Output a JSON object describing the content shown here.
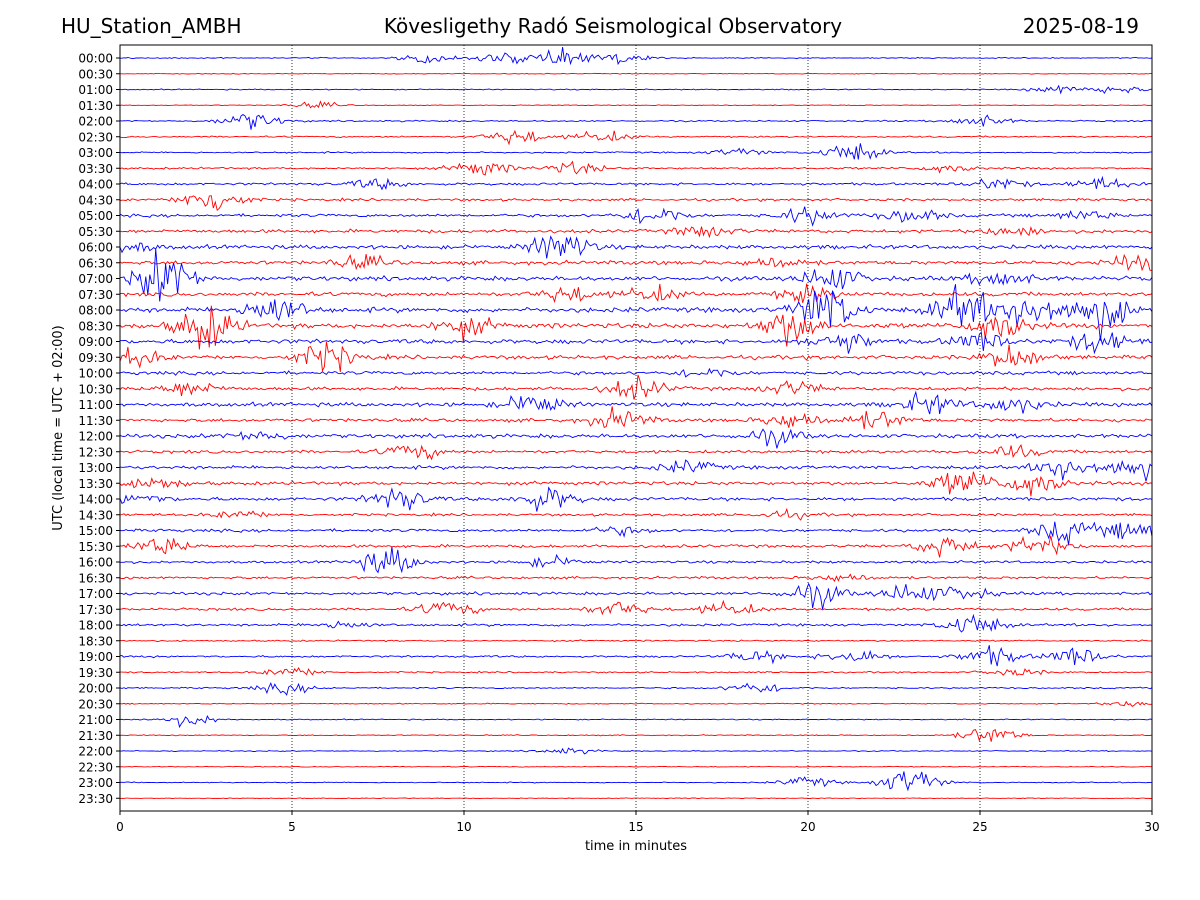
{
  "header": {
    "station": "HU_Station_AMBH",
    "observatory": "Kövesligethy Radó Seismological Observatory",
    "date": "2025-08-19"
  },
  "chart_data": {
    "type": "line",
    "subtype": "helicorder",
    "xlabel": "time in minutes",
    "ylabel": "UTC (local time = UTC + 02:00)",
    "xlim": [
      0,
      30
    ],
    "xticks": [
      0,
      5,
      10,
      15,
      20,
      25,
      30
    ],
    "grid": "vertical dotted lines at each x tick",
    "trace_colors": [
      "#0000ff",
      "#ff0000"
    ],
    "rows": [
      "00:00",
      "00:30",
      "01:00",
      "01:30",
      "02:00",
      "02:30",
      "03:00",
      "03:30",
      "04:00",
      "04:30",
      "05:00",
      "05:30",
      "06:00",
      "06:30",
      "07:00",
      "07:30",
      "08:00",
      "08:30",
      "09:00",
      "09:30",
      "10:00",
      "10:30",
      "11:00",
      "11:30",
      "12:00",
      "12:30",
      "13:00",
      "13:30",
      "14:00",
      "14:30",
      "15:00",
      "15:30",
      "16:00",
      "16:30",
      "17:00",
      "17:30",
      "18:00",
      "18:30",
      "19:00",
      "19:30",
      "20:00",
      "20:30",
      "21:00",
      "21:30",
      "22:00",
      "22:30",
      "23:00",
      "23:30"
    ],
    "noise_level": [
      0.2,
      0.15,
      0.2,
      0.15,
      0.3,
      0.3,
      0.3,
      0.4,
      0.5,
      0.5,
      0.6,
      0.7,
      0.8,
      0.8,
      0.9,
      0.8,
      1.0,
      1.0,
      0.9,
      0.8,
      0.7,
      0.7,
      0.8,
      0.7,
      0.8,
      0.6,
      0.7,
      0.7,
      0.7,
      0.5,
      0.6,
      0.6,
      0.5,
      0.5,
      0.6,
      0.5,
      0.5,
      0.3,
      0.4,
      0.3,
      0.3,
      0.2,
      0.2,
      0.2,
      0.2,
      0.15,
      0.2,
      0.15
    ],
    "bursts": [
      [
        [
          9,
          0.5
        ],
        [
          11,
          0.5
        ],
        [
          12.7,
          0.9
        ],
        [
          14.5,
          0.5
        ]
      ],
      [],
      [
        [
          27.3,
          0.4
        ],
        [
          29,
          0.4
        ]
      ],
      [
        [
          5.7,
          0.3
        ]
      ],
      [
        [
          3.8,
          0.9
        ],
        [
          25,
          0.6
        ]
      ],
      [
        [
          11.5,
          0.8
        ],
        [
          14,
          0.6
        ]
      ],
      [
        [
          21.3,
          1.0
        ],
        [
          18,
          0.4
        ]
      ],
      [
        [
          10.5,
          0.8
        ],
        [
          13.2,
          0.6
        ],
        [
          24,
          0.4
        ]
      ],
      [
        [
          7.5,
          0.5
        ],
        [
          25.5,
          0.6
        ],
        [
          28.5,
          0.6
        ]
      ],
      [
        [
          2.7,
          1.5
        ]
      ],
      [
        [
          15.5,
          1.0
        ],
        [
          20,
          0.8
        ],
        [
          23,
          0.7
        ],
        [
          28,
          0.5
        ]
      ],
      [
        [
          17,
          0.6
        ],
        [
          26,
          0.5
        ]
      ],
      [
        [
          12.8,
          1.6
        ],
        [
          0.2,
          0.5
        ]
      ],
      [
        [
          7,
          0.6
        ],
        [
          29.5,
          0.8
        ],
        [
          19,
          0.5
        ]
      ],
      [
        [
          1.3,
          2.8
        ],
        [
          20.7,
          1.3
        ],
        [
          25.6,
          0.9
        ]
      ],
      [
        [
          13,
          0.8
        ],
        [
          15.5,
          0.8
        ],
        [
          20,
          0.8
        ]
      ],
      [
        [
          4.5,
          1.6
        ],
        [
          20.5,
          2.5
        ],
        [
          24.5,
          2.2
        ],
        [
          28.5,
          2.4
        ],
        [
          26.5,
          2
        ]
      ],
      [
        [
          2.5,
          2.2
        ],
        [
          10,
          1.0
        ],
        [
          19.5,
          1.8
        ],
        [
          25.5,
          1.5
        ]
      ],
      [
        [
          21,
          1.1
        ],
        [
          25,
          0.9
        ],
        [
          28.5,
          1.2
        ]
      ],
      [
        [
          6,
          1.4
        ],
        [
          0.3,
          1.0
        ],
        [
          26,
          1.2
        ]
      ],
      [
        [
          17,
          0.5
        ]
      ],
      [
        [
          15,
          1.1
        ],
        [
          2,
          0.8
        ],
        [
          19.5,
          0.7
        ]
      ],
      [
        [
          12,
          1.0
        ],
        [
          23.5,
          1.0
        ],
        [
          26,
          0.8
        ]
      ],
      [
        [
          14.5,
          1.0
        ],
        [
          19.5,
          0.9
        ],
        [
          22,
          0.9
        ]
      ],
      [
        [
          19,
          0.8
        ],
        [
          4,
          0.5
        ]
      ],
      [
        [
          8.5,
          0.8
        ],
        [
          26,
          0.6
        ]
      ],
      [
        [
          27.5,
          1.2
        ],
        [
          29.5,
          1.2
        ],
        [
          16.5,
          0.6
        ]
      ],
      [
        [
          24.5,
          1.3
        ],
        [
          26.5,
          1.3
        ],
        [
          1,
          0.6
        ]
      ],
      [
        [
          8.1,
          1.2
        ],
        [
          12.4,
          1.2
        ],
        [
          0.5,
          0.6
        ]
      ],
      [
        [
          3.5,
          0.4
        ],
        [
          19.3,
          0.4
        ]
      ],
      [
        [
          27.5,
          1.2
        ],
        [
          29.5,
          1.0
        ],
        [
          14.5,
          0.4
        ]
      ],
      [
        [
          1.2,
          0.9
        ],
        [
          24,
          1.1
        ],
        [
          26.7,
          1.0
        ]
      ],
      [
        [
          7.8,
          1.4
        ],
        [
          12.5,
          0.5
        ]
      ],
      [
        [
          21,
          0.4
        ]
      ],
      [
        [
          20.2,
          1.2
        ],
        [
          23,
          1.0
        ],
        [
          24.5,
          0.6
        ]
      ],
      [
        [
          9.5,
          0.8
        ],
        [
          14.5,
          0.8
        ],
        [
          17.7,
          0.7
        ]
      ],
      [
        [
          24.8,
          1.1
        ],
        [
          6.5,
          0.4
        ]
      ],
      [],
      [
        [
          25.3,
          1.0
        ],
        [
          27.8,
          0.9
        ],
        [
          21.3,
          0.8
        ],
        [
          18.5,
          0.6
        ]
      ],
      [
        [
          5,
          0.5
        ],
        [
          26,
          0.4
        ]
      ],
      [
        [
          4.8,
          0.5
        ],
        [
          18.5,
          0.6
        ]
      ],
      [
        [
          29.5,
          0.3
        ]
      ],
      [
        [
          2,
          0.6
        ]
      ],
      [
        [
          25.3,
          0.9
        ]
      ],
      [
        [
          13,
          0.3
        ]
      ],
      [],
      [
        [
          23,
          1.4
        ],
        [
          20,
          0.5
        ]
      ],
      []
    ]
  }
}
